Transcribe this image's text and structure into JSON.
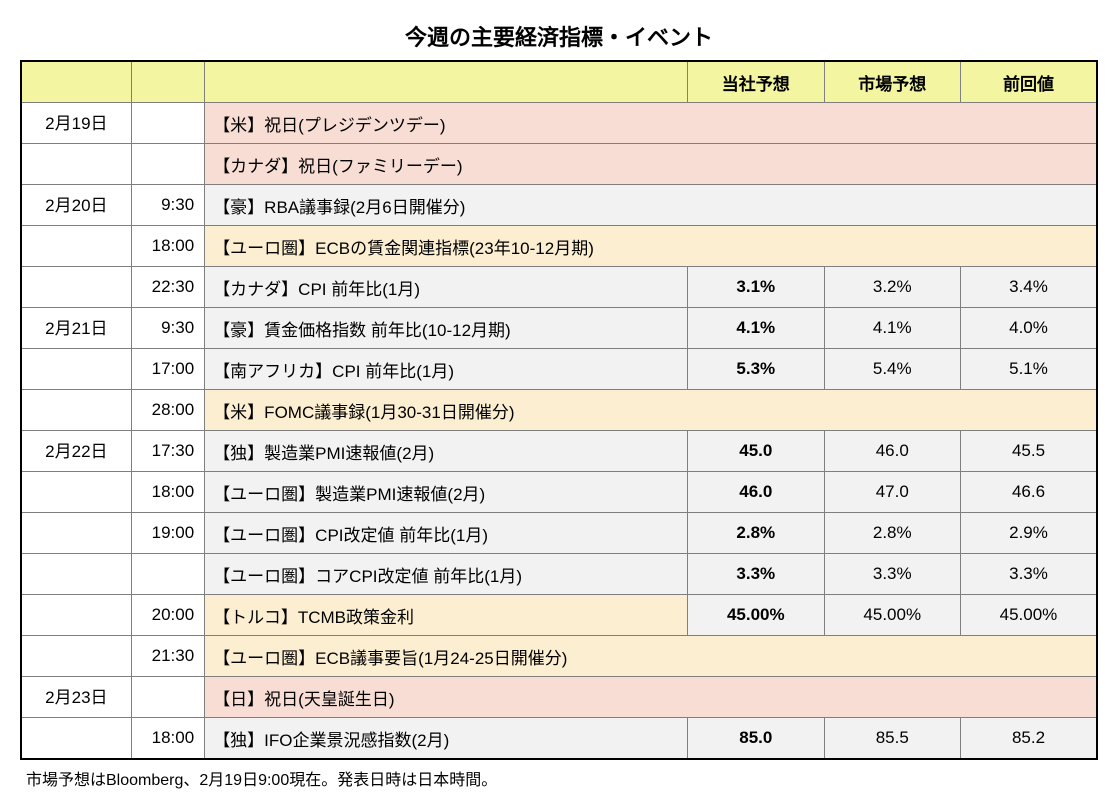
{
  "title": "今週の主要経済指標・イベント",
  "headers": {
    "date": "",
    "time": "",
    "event": "",
    "company_forecast": "当社予想",
    "market_forecast": "市場予想",
    "previous": "前回値"
  },
  "colors": {
    "header_bg": "#f3f5a1",
    "normal_bg": "#f2f2f2",
    "pink_bg": "#f7ddd4",
    "yellow_bg": "#fceed0",
    "border": "#7f7f7f",
    "outer_border": "#000000"
  },
  "rows": [
    {
      "date": "2月19日",
      "time": "",
      "event": "【米】祝日(プレジデンツデー)",
      "highlight": "pink",
      "span": true,
      "section": true
    },
    {
      "date": "",
      "time": "",
      "event": "【カナダ】祝日(ファミリーデー)",
      "highlight": "pink",
      "span": true
    },
    {
      "date": "2月20日",
      "time": "9:30",
      "event": "【豪】RBA議事録(2月6日開催分)",
      "highlight": "none",
      "span": true,
      "section": true
    },
    {
      "date": "",
      "time": "18:00",
      "event": "【ユーロ圏】ECBの賃金関連指標(23年10-12月期)",
      "highlight": "yellow",
      "span": true
    },
    {
      "date": "",
      "time": "22:30",
      "event": "【カナダ】CPI 前年比(1月)",
      "highlight": "none",
      "v1": "3.1%",
      "v2": "3.2%",
      "v3": "3.4%"
    },
    {
      "date": "2月21日",
      "time": "9:30",
      "event": "【豪】賃金価格指数 前年比(10-12月期)",
      "highlight": "none",
      "v1": "4.1%",
      "v2": "4.1%",
      "v3": "4.0%",
      "section": true
    },
    {
      "date": "",
      "time": "17:00",
      "event": "【南アフリカ】CPI 前年比(1月)",
      "highlight": "none",
      "v1": "5.3%",
      "v2": "5.4%",
      "v3": "5.1%"
    },
    {
      "date": "",
      "time": "28:00",
      "event": "【米】FOMC議事録(1月30-31日開催分)",
      "highlight": "yellow",
      "span": true
    },
    {
      "date": "2月22日",
      "time": "17:30",
      "event": "【独】製造業PMI速報値(2月)",
      "highlight": "none",
      "v1": "45.0",
      "v2": "46.0",
      "v3": "45.5",
      "section": true
    },
    {
      "date": "",
      "time": "18:00",
      "event": "【ユーロ圏】製造業PMI速報値(2月)",
      "highlight": "none",
      "v1": "46.0",
      "v2": "47.0",
      "v3": "46.6"
    },
    {
      "date": "",
      "time": "19:00",
      "event": "【ユーロ圏】CPI改定値 前年比(1月)",
      "highlight": "none",
      "v1": "2.8%",
      "v2": "2.8%",
      "v3": "2.9%"
    },
    {
      "date": "",
      "time": "",
      "event": "【ユーロ圏】コアCPI改定値 前年比(1月)",
      "highlight": "none",
      "v1": "3.3%",
      "v2": "3.3%",
      "v3": "3.3%"
    },
    {
      "date": "",
      "time": "20:00",
      "event": "【トルコ】TCMB政策金利",
      "highlight": "yellow",
      "v1": "45.00%",
      "v2": "45.00%",
      "v3": "45.00%"
    },
    {
      "date": "",
      "time": "21:30",
      "event": "【ユーロ圏】ECB議事要旨(1月24-25日開催分)",
      "highlight": "yellow",
      "span": true
    },
    {
      "date": "2月23日",
      "time": "",
      "event": "【日】祝日(天皇誕生日)",
      "highlight": "pink",
      "span": true,
      "section": true
    },
    {
      "date": "",
      "time": "18:00",
      "event": "【独】IFO企業景況感指数(2月)",
      "highlight": "none",
      "v1": "85.0",
      "v2": "85.5",
      "v3": "85.2"
    }
  ],
  "footnote": "市場予想はBloomberg、2月19日9:00現在。発表日時は日本時間。"
}
